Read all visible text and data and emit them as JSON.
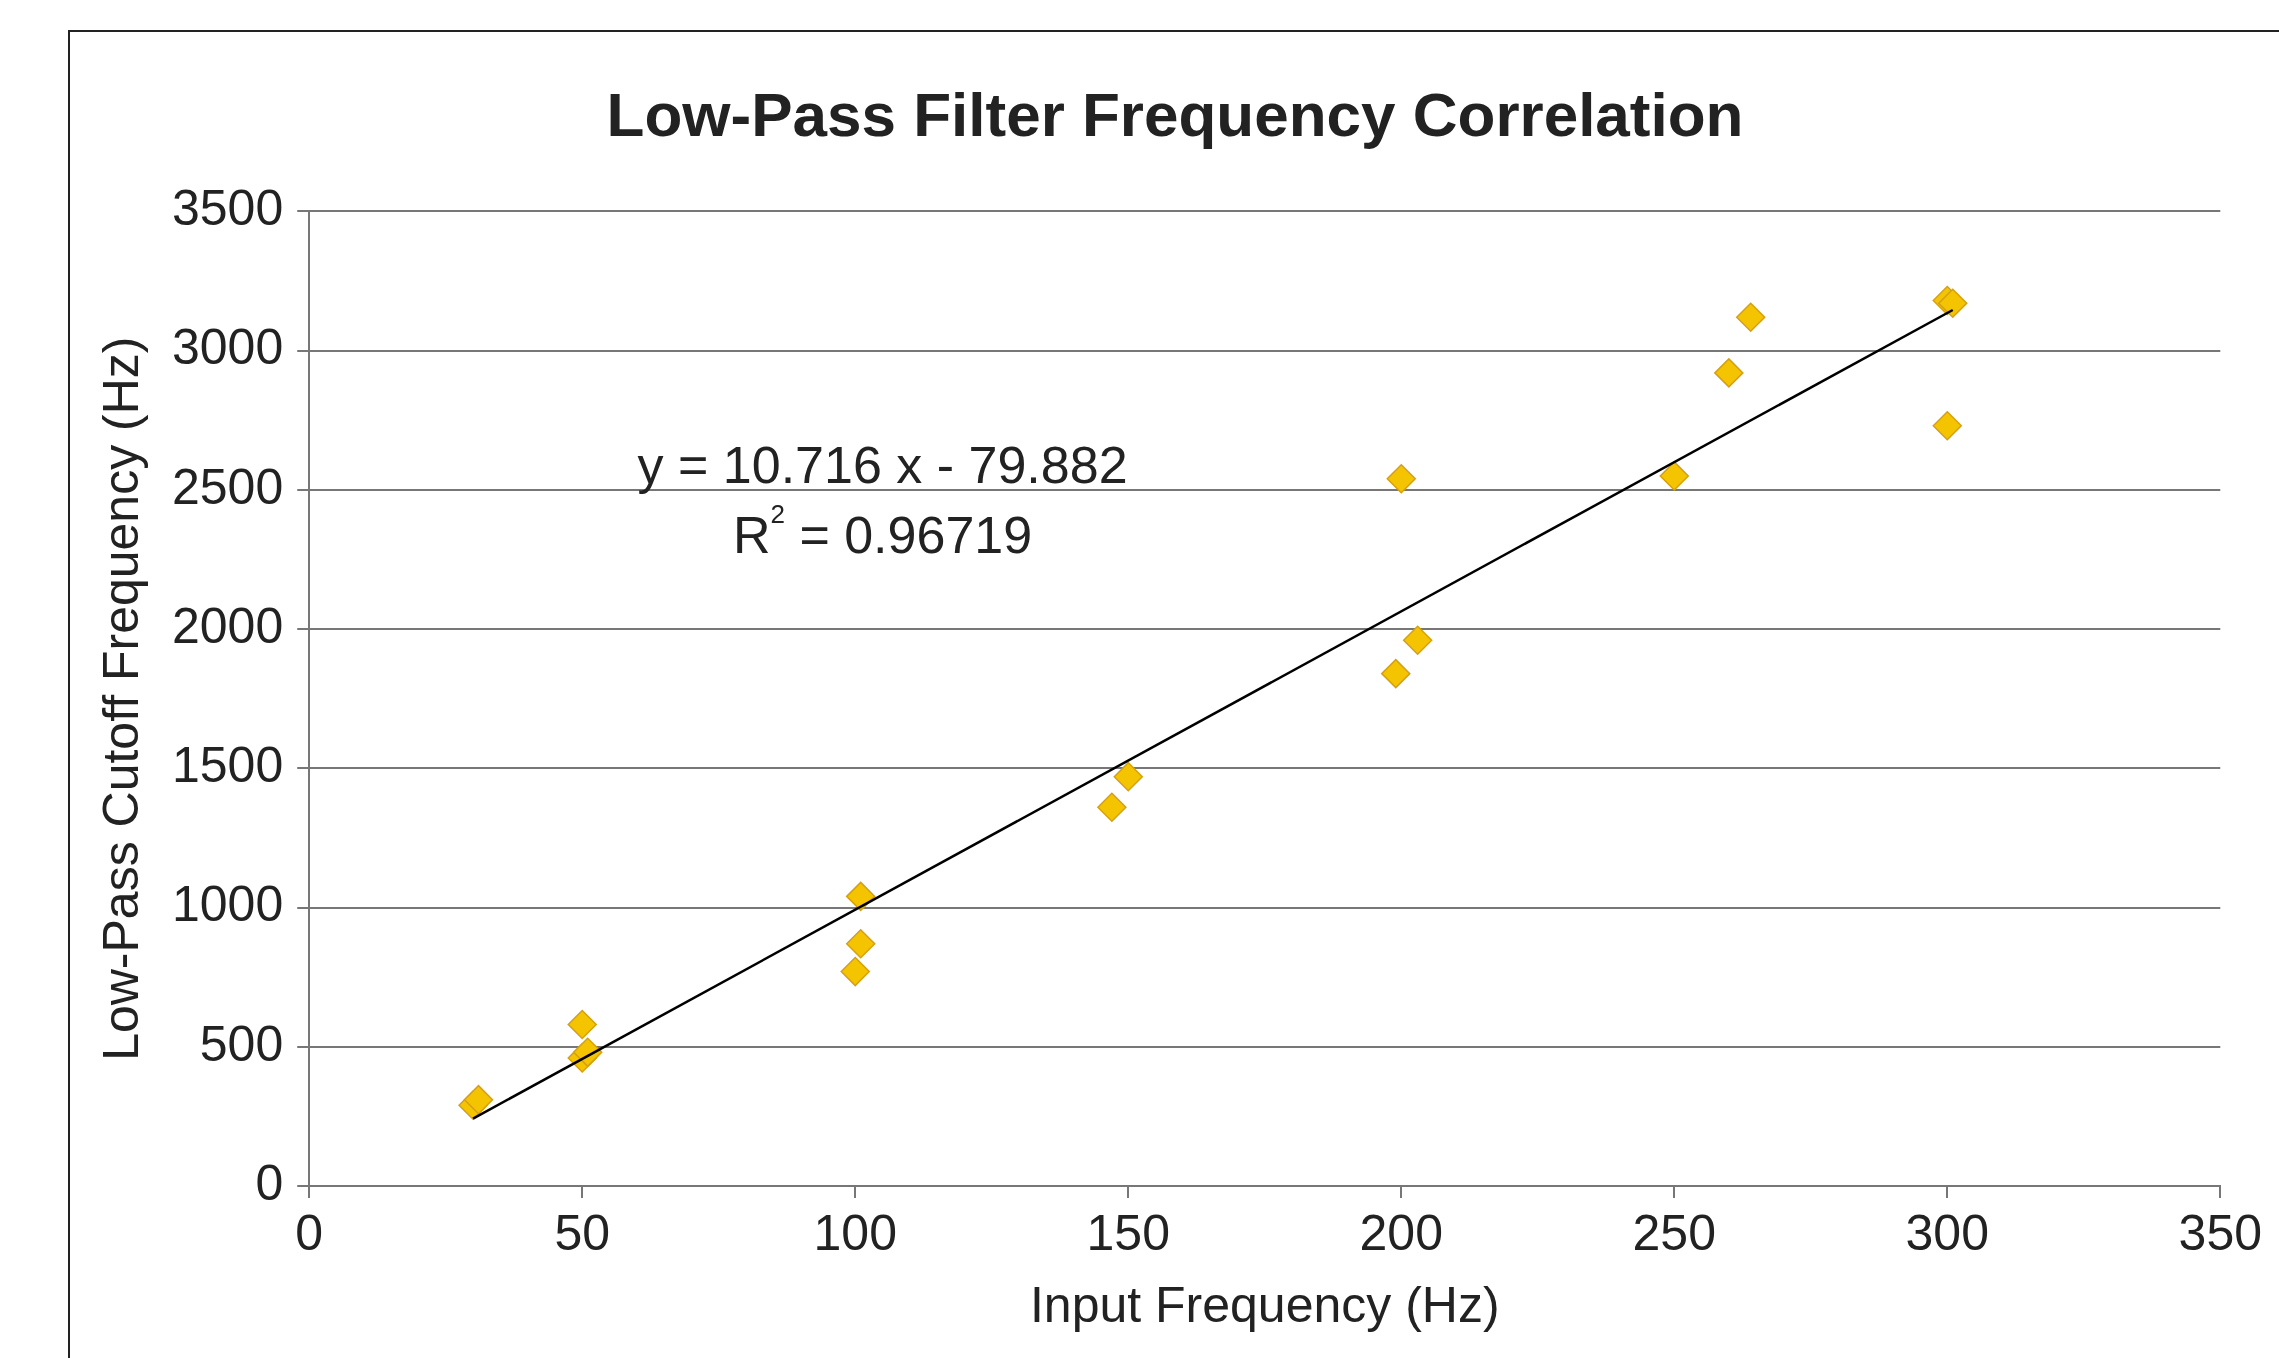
{
  "chart_data": {
    "type": "scatter",
    "title": "Low-Pass Filter Frequency Correlation",
    "xlabel": "Input Frequency (Hz)",
    "ylabel": "Low-Pass Cutoff Frequency (Hz)",
    "annotations": [
      "y = 10.716 x - 79.882",
      "R$^{2}$ = 0.96719"
    ],
    "series": [
      {
        "color": "#f5c400",
        "x": [
          30,
          31,
          50,
          50,
          51,
          101,
          101,
          100,
          147,
          150,
          199,
          203,
          200,
          250,
          260,
          264,
          300,
          300,
          301
        ],
        "values": [
          290,
          310,
          580,
          460,
          480,
          1040,
          870,
          770,
          1360,
          1470,
          1840,
          1960,
          2540,
          2550,
          2920,
          3120,
          2730,
          3180,
          3170
        ]
      },
      {
        "type": "line",
        "color": "#000000",
        "marker": "none",
        "x": [
          30,
          301
        ],
        "values": [
          242,
          3146
        ]
      }
    ],
    "xlim": [
      0,
      350
    ],
    "xticks": [
      0,
      50,
      100,
      150,
      200,
      250,
      300,
      350
    ],
    "ylim": [
      0,
      3500
    ],
    "yticks": [
      0,
      500,
      1000,
      1500,
      2000,
      2500,
      3000,
      3500
    ],
    "grid": "y",
    "legend": false,
    "marker": "diamond"
  }
}
